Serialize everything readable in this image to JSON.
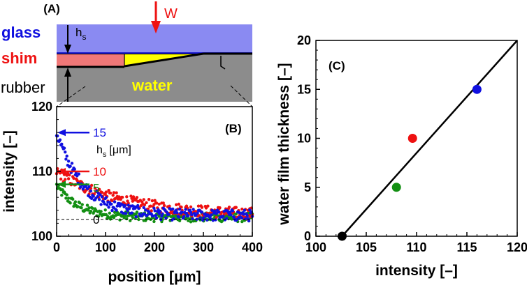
{
  "colors": {
    "blue": "#1010e0",
    "red": "#ee1111",
    "green": "#138f13",
    "yellow": "#ffff00",
    "glass": "#8a8af2",
    "shim": "#f07878",
    "rubber": "#8c8c8c",
    "black": "#000000"
  },
  "panel_a": {
    "tag": "(A)",
    "glass_label": "glass",
    "shim_label": "shim",
    "rubber_label": "rubber",
    "water_label": "water",
    "load_label": "W",
    "hs_main": "h",
    "hs_sub": "s"
  },
  "chart_data": [
    {
      "id": "B",
      "type": "scatter",
      "tag": "(B)",
      "xlabel": "position [μm]",
      "ylabel": "intensity [–]",
      "xlim": [
        0,
        400
      ],
      "ylim": [
        100,
        120
      ],
      "xticks": [
        "0",
        "100",
        "200",
        "300",
        "400"
      ],
      "yticks": [
        "100",
        "110",
        "120"
      ],
      "legend_title_main": "h",
      "legend_title_sub": "s",
      "legend_title_unit": "[μm]",
      "series": [
        {
          "name": "15",
          "color": "#1010e0",
          "start": 116,
          "end": 103.2,
          "decay": 55,
          "noise": 0.9
        },
        {
          "name": "10",
          "color": "#ee1111",
          "start": 110,
          "end": 103.2,
          "decay": 130,
          "noise": 0.9
        },
        {
          "name": "5",
          "color": "#138f13",
          "start": 107.8,
          "end": 102.9,
          "decay": 45,
          "noise": 0.7
        },
        {
          "name": "0",
          "color": "#000000",
          "start": 102.6,
          "end": 102.6,
          "decay": 100,
          "noise": 0.0
        }
      ],
      "level_arrows": [
        {
          "value": 116,
          "color": "#1010e0"
        },
        {
          "value": 110,
          "color": "#ee1111"
        },
        {
          "value": 108,
          "color": "#138f13"
        }
      ],
      "baseline": 102.6
    },
    {
      "id": "C",
      "type": "scatter",
      "tag": "(C)",
      "xlabel": "intensity [–]",
      "ylabel": "water film thickness [–]",
      "xlim": [
        100,
        120
      ],
      "ylim": [
        0,
        20
      ],
      "xticks": [
        "100",
        "105",
        "110",
        "115",
        "120"
      ],
      "yticks": [
        "0",
        "5",
        "10",
        "15",
        "20"
      ],
      "points": [
        {
          "x": 102.6,
          "y": 0,
          "color": "#000000"
        },
        {
          "x": 108,
          "y": 5,
          "color": "#138f13"
        },
        {
          "x": 109.6,
          "y": 10,
          "color": "#ee1111"
        },
        {
          "x": 116,
          "y": 15,
          "color": "#1010e0"
        }
      ],
      "fit_line": {
        "x": [
          102.6,
          120
        ],
        "y": [
          0,
          20
        ]
      }
    }
  ]
}
